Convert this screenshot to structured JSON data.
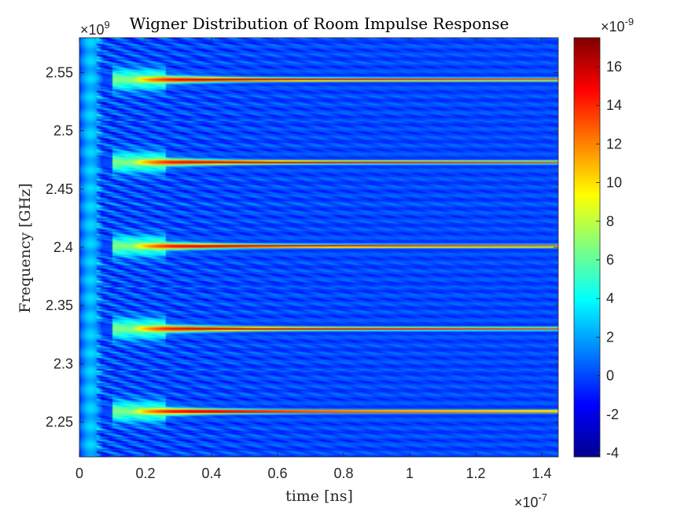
{
  "chart_data": {
    "type": "heatmap",
    "title": "Wigner Distribution of Room Impulse Response",
    "xlabel": "time [ns]",
    "ylabel": "Frequency [GHz]",
    "x_exponent_label": "×10",
    "x_exponent_power": "-7",
    "y_exponent_label": "×10",
    "y_exponent_power": "9",
    "colorbar_exponent_label": "×10",
    "colorbar_exponent_power": "-9",
    "xlim": [
      0,
      1.45
    ],
    "ylim": [
      2.22,
      2.58
    ],
    "clim": [
      -4.2,
      17.5
    ],
    "colormap": "jet",
    "x_ticks": [
      "0",
      "0.2",
      "0.4",
      "0.6",
      "0.8",
      "1",
      "1.2",
      "1.4"
    ],
    "x_tick_values": [
      0,
      0.2,
      0.4,
      0.6,
      0.8,
      1,
      1.2,
      1.4
    ],
    "y_ticks": [
      "2.25",
      "2.3",
      "2.35",
      "2.4",
      "2.45",
      "2.5",
      "2.55"
    ],
    "y_tick_values": [
      2.25,
      2.3,
      2.35,
      2.4,
      2.45,
      2.5,
      2.55
    ],
    "colorbar_ticks": [
      "-4",
      "-2",
      "0",
      "2",
      "4",
      "6",
      "8",
      "10",
      "12",
      "14",
      "16"
    ],
    "colorbar_tick_values": [
      -4,
      -2,
      0,
      2,
      4,
      6,
      8,
      10,
      12,
      14,
      16
    ],
    "resonance_frequencies": [
      2.259,
      2.33,
      2.401,
      2.473,
      2.544
    ],
    "resonance_peak_value": 17.5,
    "background_value": 0,
    "colorbar_location": "right"
  }
}
